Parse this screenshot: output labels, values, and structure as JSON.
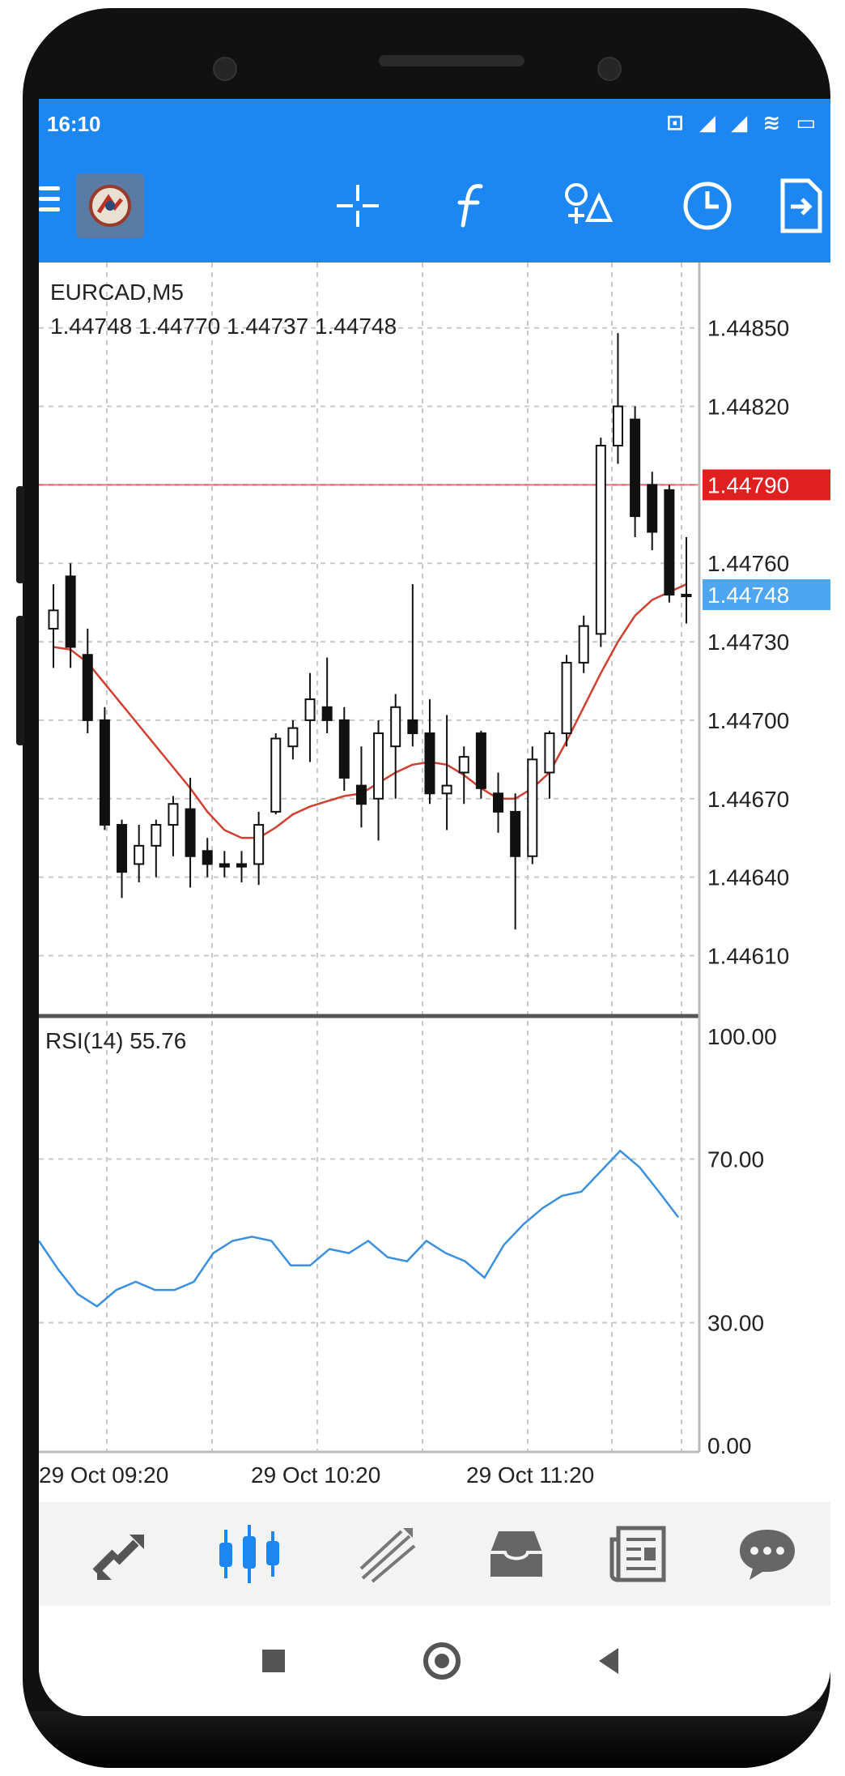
{
  "status_bar": {
    "time": "16:10",
    "icons": "⊡ ◢ ◢ ≋ ▭"
  },
  "toolbar": {
    "items": [
      {
        "icon": "menu-icon"
      },
      {
        "icon": "app-logo"
      },
      {
        "icon": "crosshair-icon"
      },
      {
        "icon": "indicators-icon"
      },
      {
        "icon": "objects-icon"
      },
      {
        "icon": "timeframe-clock-icon"
      },
      {
        "icon": "new-order-icon"
      }
    ]
  },
  "chart": {
    "symbol_label": "EURCAD,M5",
    "ohlc_label": "1.44748 1.44770 1.44737 1.44748",
    "price_ticks": [
      "1.44850",
      "1.44820",
      "1.44790",
      "1.44760",
      "1.44730",
      "1.44700",
      "1.44670",
      "1.44640",
      "1.44610"
    ],
    "ask_price": "1.44790",
    "bid_price": "1.44748",
    "rsi_label": "RSI(14) 55.76",
    "rsi_ticks": [
      "100.00",
      "70.00",
      "30.00",
      "0.00"
    ],
    "time_labels": [
      "29 Oct 09:20",
      "29 Oct 10:20",
      "29 Oct 11:20"
    ],
    "colors": {
      "ask_line": "#e02020",
      "bid_badge": "#4fa6f0",
      "ma_line": "#d04030",
      "rsi_line": "#3a8fe0",
      "grid": "#c8c8c8",
      "accent": "#1c86f2"
    }
  },
  "chart_data": [
    {
      "type": "candlestick",
      "title": "EURCAD,M5",
      "y_range": [
        1.4459,
        1.44875
      ],
      "ask": 1.4479,
      "bid": 1.44748,
      "x_ticks": [
        "29 Oct 09:20",
        "29 Oct 10:20",
        "29 Oct 11:20"
      ],
      "candles": [
        {
          "o": 1.44735,
          "h": 1.44752,
          "l": 1.4472,
          "c": 1.44742
        },
        {
          "o": 1.44755,
          "h": 1.4476,
          "l": 1.4472,
          "c": 1.44728
        },
        {
          "o": 1.44725,
          "h": 1.44735,
          "l": 1.44695,
          "c": 1.447
        },
        {
          "o": 1.447,
          "h": 1.44705,
          "l": 1.44658,
          "c": 1.4466
        },
        {
          "o": 1.4466,
          "h": 1.44662,
          "l": 1.44632,
          "c": 1.44642
        },
        {
          "o": 1.44645,
          "h": 1.4466,
          "l": 1.44638,
          "c": 1.44652
        },
        {
          "o": 1.44652,
          "h": 1.44662,
          "l": 1.4464,
          "c": 1.4466
        },
        {
          "o": 1.4466,
          "h": 1.44671,
          "l": 1.44648,
          "c": 1.44668
        },
        {
          "o": 1.44666,
          "h": 1.44678,
          "l": 1.44636,
          "c": 1.44648
        },
        {
          "o": 1.4465,
          "h": 1.44655,
          "l": 1.4464,
          "c": 1.44645
        },
        {
          "o": 1.44645,
          "h": 1.4465,
          "l": 1.4464,
          "c": 1.44644
        },
        {
          "o": 1.44645,
          "h": 1.4465,
          "l": 1.44638,
          "c": 1.44644
        },
        {
          "o": 1.44645,
          "h": 1.44665,
          "l": 1.44637,
          "c": 1.4466
        },
        {
          "o": 1.44665,
          "h": 1.44695,
          "l": 1.44664,
          "c": 1.44693
        },
        {
          "o": 1.4469,
          "h": 1.447,
          "l": 1.44685,
          "c": 1.44697
        },
        {
          "o": 1.447,
          "h": 1.44718,
          "l": 1.44684,
          "c": 1.44708
        },
        {
          "o": 1.44705,
          "h": 1.44724,
          "l": 1.44695,
          "c": 1.447
        },
        {
          "o": 1.447,
          "h": 1.44705,
          "l": 1.44673,
          "c": 1.44678
        },
        {
          "o": 1.44675,
          "h": 1.4469,
          "l": 1.44659,
          "c": 1.44668
        },
        {
          "o": 1.4467,
          "h": 1.447,
          "l": 1.44654,
          "c": 1.44695
        },
        {
          "o": 1.4469,
          "h": 1.4471,
          "l": 1.4467,
          "c": 1.44705
        },
        {
          "o": 1.447,
          "h": 1.44752,
          "l": 1.4469,
          "c": 1.44695
        },
        {
          "o": 1.44695,
          "h": 1.44708,
          "l": 1.44668,
          "c": 1.44672
        },
        {
          "o": 1.44672,
          "h": 1.44702,
          "l": 1.44658,
          "c": 1.44675
        },
        {
          "o": 1.4468,
          "h": 1.4469,
          "l": 1.44668,
          "c": 1.44686
        },
        {
          "o": 1.44695,
          "h": 1.44696,
          "l": 1.4467,
          "c": 1.44674
        },
        {
          "o": 1.44672,
          "h": 1.4468,
          "l": 1.44657,
          "c": 1.44665
        },
        {
          "o": 1.44665,
          "h": 1.44672,
          "l": 1.4462,
          "c": 1.44648
        },
        {
          "o": 1.44648,
          "h": 1.4469,
          "l": 1.44645,
          "c": 1.44685
        },
        {
          "o": 1.4468,
          "h": 1.44696,
          "l": 1.4467,
          "c": 1.44695
        },
        {
          "o": 1.44695,
          "h": 1.44725,
          "l": 1.4469,
          "c": 1.44722
        },
        {
          "o": 1.44722,
          "h": 1.4474,
          "l": 1.44718,
          "c": 1.44736
        },
        {
          "o": 1.44733,
          "h": 1.44808,
          "l": 1.44728,
          "c": 1.44805
        },
        {
          "o": 1.44805,
          "h": 1.44848,
          "l": 1.44798,
          "c": 1.4482
        },
        {
          "o": 1.44815,
          "h": 1.4482,
          "l": 1.4477,
          "c": 1.44778
        },
        {
          "o": 1.4479,
          "h": 1.44795,
          "l": 1.44765,
          "c": 1.44772
        },
        {
          "o": 1.44788,
          "h": 1.4479,
          "l": 1.44745,
          "c": 1.44748
        },
        {
          "o": 1.44748,
          "h": 1.4477,
          "l": 1.44737,
          "c": 1.44748
        }
      ],
      "moving_average": [
        1.44728,
        1.44727,
        1.44722,
        1.44714,
        1.44706,
        1.44698,
        1.4469,
        1.44682,
        1.44674,
        1.44665,
        1.44658,
        1.44655,
        1.44655,
        1.44659,
        1.44664,
        1.44667,
        1.44669,
        1.44671,
        1.44672,
        1.44676,
        1.4468,
        1.44683,
        1.44684,
        1.44683,
        1.44679,
        1.44674,
        1.4467,
        1.4467,
        1.44674,
        1.4468,
        1.44692,
        1.44705,
        1.44718,
        1.4473,
        1.4474,
        1.44746,
        1.44749,
        1.44752
      ]
    },
    {
      "type": "line",
      "title": "RSI(14) 55.76",
      "y_range": [
        0,
        100
      ],
      "y_ticks": [
        100,
        70,
        30,
        0
      ],
      "series": [
        {
          "name": "RSI(14)",
          "values": [
            50,
            43,
            37,
            34,
            38,
            40,
            38,
            38,
            40,
            47,
            50,
            51,
            50,
            44,
            44,
            48,
            47,
            50,
            46,
            45,
            50,
            47,
            45,
            41,
            49,
            54,
            58,
            61,
            62,
            67,
            72,
            68,
            62,
            55.76
          ]
        }
      ]
    }
  ],
  "bottom_nav": {
    "items": [
      {
        "icon": "quotes-icon"
      },
      {
        "icon": "chart-icon",
        "active": true
      },
      {
        "icon": "trade-icon"
      },
      {
        "icon": "history-icon"
      },
      {
        "icon": "news-icon"
      },
      {
        "icon": "messages-icon"
      }
    ]
  },
  "android_nav": {
    "items": [
      {
        "icon": "recent-apps-icon"
      },
      {
        "icon": "home-icon"
      },
      {
        "icon": "back-icon"
      }
    ]
  }
}
